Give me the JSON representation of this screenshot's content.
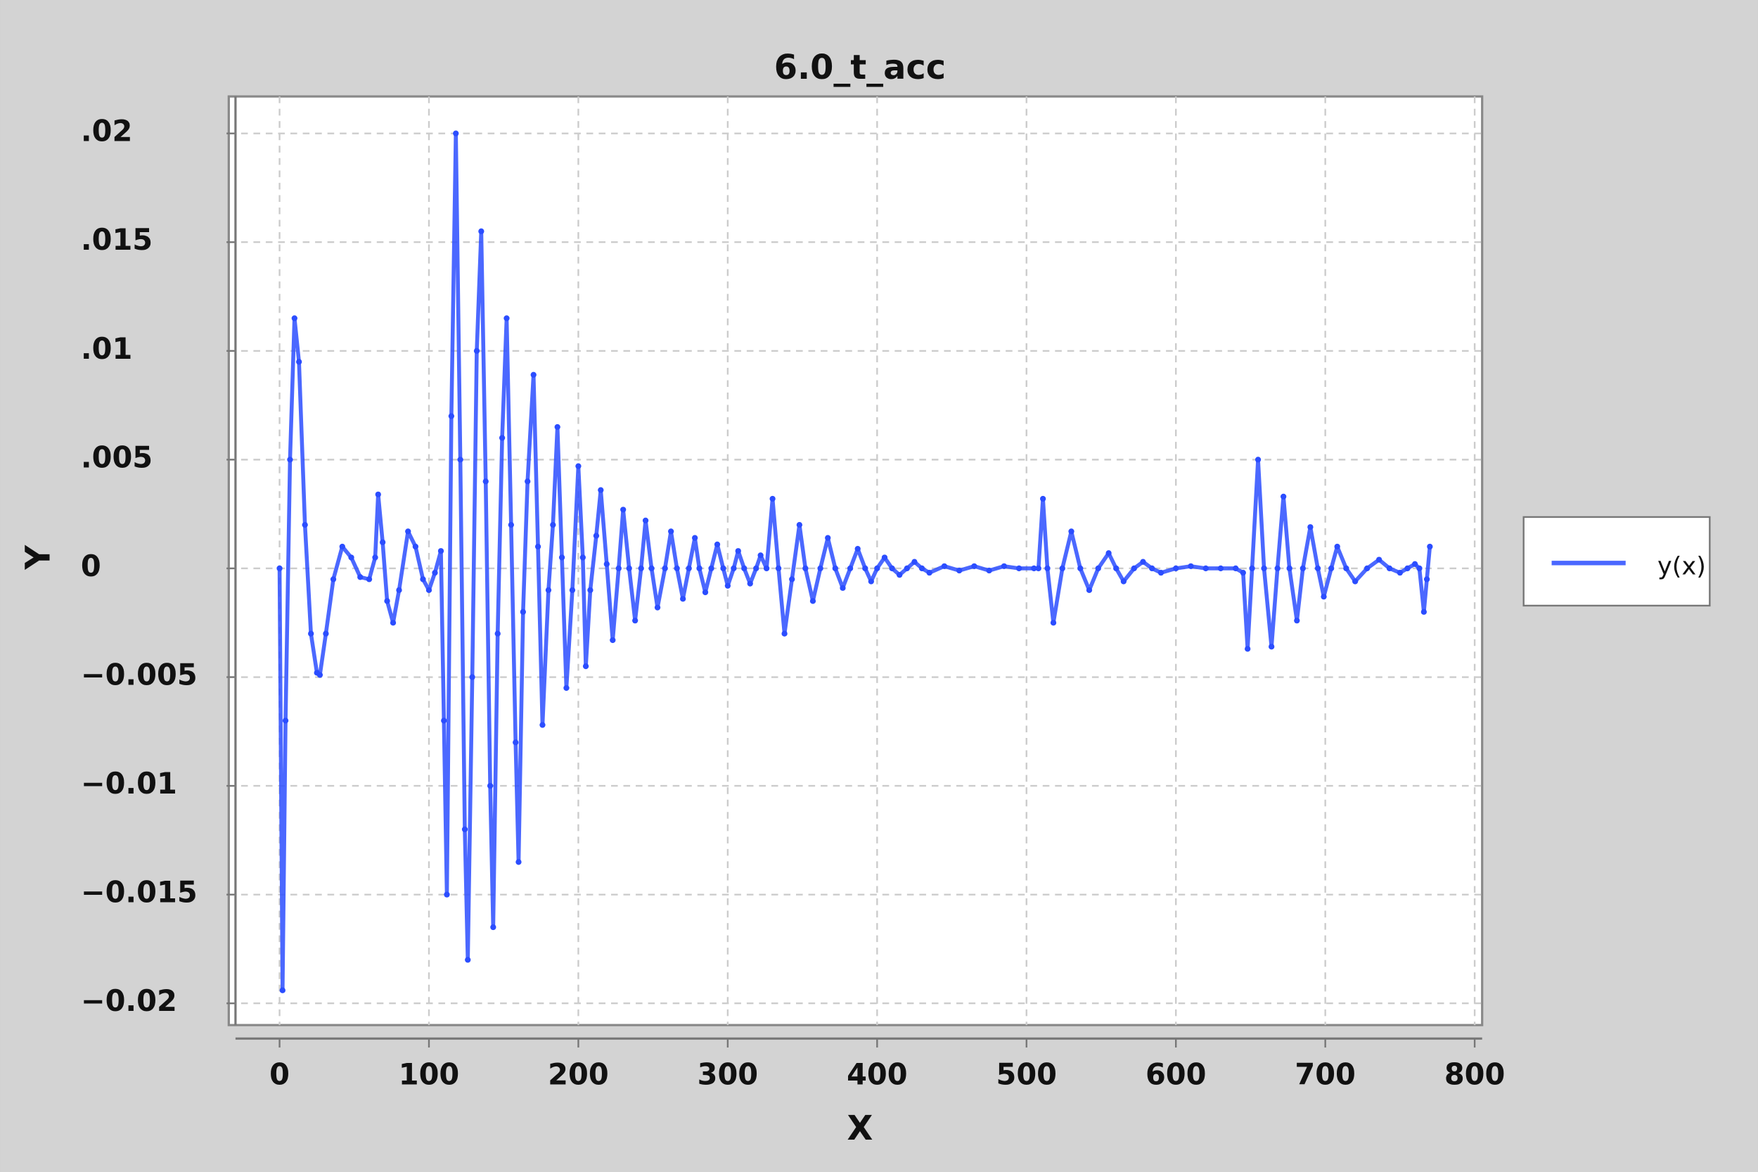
{
  "chart_data": {
    "type": "line",
    "title": "6.0_t_acc",
    "x_label": "X",
    "y_label": "Y",
    "xlim": [
      -34,
      805
    ],
    "ylim": [
      -0.021,
      0.0217
    ],
    "xticks": [
      0,
      100,
      200,
      300,
      400,
      500,
      600,
      700,
      800
    ],
    "yticks": [
      {
        "value": 0.02,
        "label": ".02"
      },
      {
        "value": 0.015,
        "label": ".015"
      },
      {
        "value": 0.01,
        "label": ".01"
      },
      {
        "value": 0.005,
        "label": ".005"
      },
      0,
      {
        "value": -0.005,
        "label": "−0.005"
      },
      {
        "value": -0.01,
        "label": "−0.01"
      },
      {
        "value": -0.015,
        "label": "−0.015"
      },
      {
        "value": -0.02,
        "label": "−0.02"
      }
    ],
    "grid": true,
    "legend": "right",
    "series": [
      {
        "name": "y(x)",
        "color": "#2b4dff",
        "x": [
          0,
          2,
          4,
          7,
          10,
          13,
          17,
          21,
          25,
          27,
          31,
          36,
          42,
          48,
          54,
          60,
          64,
          66,
          69,
          72,
          76,
          80,
          86,
          91,
          96,
          100,
          104,
          108,
          110,
          112,
          115,
          118,
          121,
          124,
          126,
          129,
          132,
          135,
          138,
          141,
          143,
          146,
          149,
          152,
          155,
          158,
          160,
          163,
          166,
          170,
          173,
          176,
          180,
          183,
          186,
          189,
          192,
          196,
          200,
          203,
          205,
          208,
          212,
          215,
          219,
          223,
          227,
          230,
          234,
          238,
          242,
          245,
          249,
          253,
          258,
          262,
          266,
          270,
          274,
          278,
          281,
          285,
          289,
          293,
          297,
          300,
          304,
          307,
          311,
          315,
          319,
          322,
          326,
          330,
          334,
          338,
          343,
          348,
          352,
          357,
          362,
          367,
          372,
          377,
          382,
          387,
          392,
          396,
          400,
          405,
          410,
          415,
          420,
          425,
          430,
          435,
          445,
          455,
          465,
          475,
          485,
          495,
          505,
          508,
          511,
          514,
          518,
          524,
          530,
          536,
          542,
          548,
          555,
          560,
          565,
          572,
          578,
          584,
          590,
          600,
          610,
          620,
          630,
          640,
          645,
          648,
          651,
          655,
          659,
          664,
          668,
          672,
          676,
          681,
          685,
          690,
          695,
          699,
          704,
          708,
          714,
          720,
          728,
          736,
          743,
          750,
          755,
          760,
          763,
          766,
          768,
          770
        ],
        "values": [
          0,
          -0.0194,
          -0.007,
          0.005,
          0.0115,
          0.0095,
          0.002,
          -0.003,
          -0.0048,
          -0.0049,
          -0.003,
          -0.0005,
          0.001,
          0.0005,
          -0.0004,
          -0.0005,
          0.0005,
          0.0034,
          0.0012,
          -0.0015,
          -0.0025,
          -0.001,
          0.0017,
          0.001,
          -0.0005,
          -0.001,
          -0.0002,
          0.0008,
          -0.007,
          -0.015,
          0.007,
          0.02,
          0.005,
          -0.012,
          -0.018,
          -0.005,
          0.01,
          0.0155,
          0.004,
          -0.01,
          -0.0165,
          -0.003,
          0.006,
          0.0115,
          0.002,
          -0.008,
          -0.0135,
          -0.002,
          0.004,
          0.0089,
          0.001,
          -0.0072,
          -0.001,
          0.002,
          0.0065,
          0.0005,
          -0.0055,
          -0.001,
          0.0047,
          0.0005,
          -0.0045,
          -0.001,
          0.0015,
          0.0036,
          0.0002,
          -0.0033,
          0,
          0.0027,
          0,
          -0.0024,
          0,
          0.0022,
          0,
          -0.0018,
          0,
          0.0017,
          0,
          -0.0014,
          0,
          0.0014,
          0,
          -0.0011,
          0,
          0.0011,
          0,
          -0.0008,
          0,
          0.0008,
          0,
          -0.0007,
          0,
          0.0006,
          0,
          0.0032,
          0,
          -0.003,
          -0.0005,
          0.002,
          0,
          -0.0015,
          0,
          0.0014,
          0,
          -0.0009,
          0,
          0.0009,
          0,
          -0.0006,
          0,
          0.0005,
          0,
          -0.0003,
          0,
          0.0003,
          0,
          -0.0002,
          0.0001,
          -0.0001,
          0.0001,
          -0.0001,
          0.0001,
          0,
          0,
          0,
          0.0032,
          0,
          -0.0025,
          0,
          0.0017,
          0,
          -0.001,
          0,
          0.0007,
          0,
          -0.0006,
          0,
          0.0003,
          0,
          -0.0002,
          0,
          0.0001,
          0,
          0,
          0,
          -0.0002,
          -0.0037,
          0,
          0.005,
          0,
          -0.0036,
          0,
          0.0033,
          0,
          -0.0024,
          0,
          0.0019,
          0,
          -0.0013,
          0,
          0.001,
          0,
          -0.0006,
          0,
          0.0004,
          0,
          -0.0002,
          0,
          0.0002,
          0,
          -0.002,
          -0.0005,
          0.001
        ]
      }
    ]
  }
}
